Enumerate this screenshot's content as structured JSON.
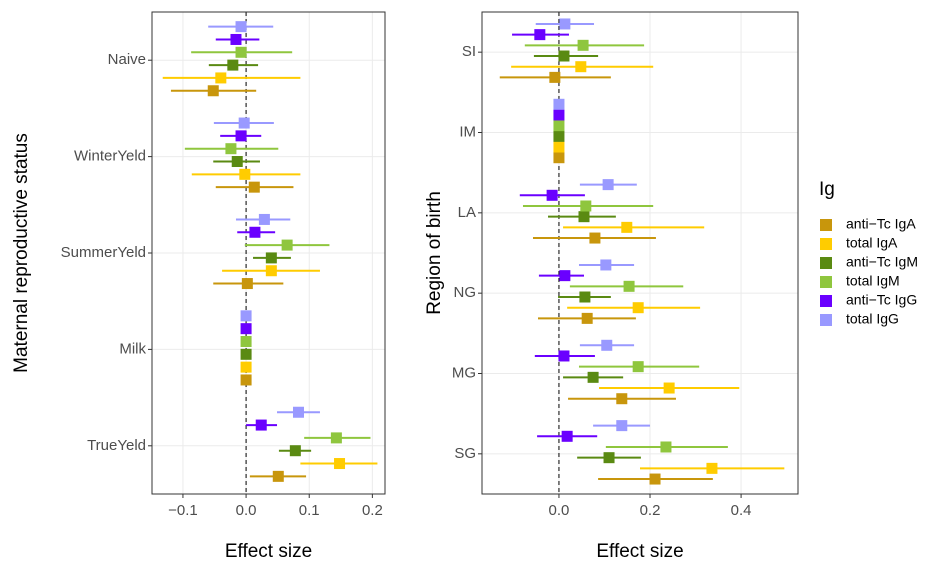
{
  "legend": {
    "title": "Ig",
    "entries": [
      {
        "name": "anti−Tc IgA",
        "color": "#c8960c"
      },
      {
        "name": "total IgA",
        "color": "#ffcc00"
      },
      {
        "name": "anti−Tc IgM",
        "color": "#5a8a12"
      },
      {
        "name": "total IgM",
        "color": "#8fc63e"
      },
      {
        "name": "anti−Tc IgG",
        "color": "#6a00ff"
      },
      {
        "name": "total IgG",
        "color": "#9999ff"
      }
    ]
  },
  "chart_data": [
    {
      "type": "forest",
      "x_label": "Effect size",
      "y_label": "Maternal reproductive status",
      "categories": [
        "Naive",
        "WinterYeld",
        "SummerYeld",
        "Milk",
        "TrueYeld"
      ],
      "xlim": [
        -0.149,
        0.22
      ],
      "xticks": [
        {
          "value": -0.1,
          "label": "−0.1"
        },
        {
          "value": 0,
          "label": "0.0"
        },
        0.1,
        0.2
      ],
      "reference_line": 0,
      "grid": true,
      "series": [
        {
          "values": [
            -0.052,
            0.013,
            0.002,
            0,
            0.051
          ],
          "lower": [
            -0.119,
            -0.048,
            -0.052,
            -0.005,
            0.006
          ],
          "upper": [
            0.016,
            0.075,
            0.059,
            0.005,
            0.095
          ]
        },
        {
          "values": [
            -0.04,
            -0.002,
            0.04,
            0,
            0.148
          ],
          "lower": [
            -0.132,
            -0.086,
            -0.038,
            -0.005,
            0.086
          ],
          "upper": [
            0.086,
            0.086,
            0.117,
            0.005,
            0.208
          ]
        },
        {
          "values": [
            -0.021,
            -0.014,
            0.04,
            0,
            0.078
          ],
          "lower": [
            -0.059,
            -0.052,
            0.011,
            -0.005,
            0.052
          ],
          "upper": [
            0.019,
            0.022,
            0.071,
            0.005,
            0.103
          ]
        },
        {
          "values": [
            -0.008,
            -0.024,
            0.065,
            0,
            0.143
          ],
          "lower": [
            -0.087,
            -0.097,
            -0.002,
            -0.005,
            0.092
          ],
          "upper": [
            0.073,
            0.051,
            0.132,
            0.005,
            0.197
          ]
        },
        {
          "values": [
            -0.016,
            -0.008,
            0.014,
            0,
            0.024
          ],
          "lower": [
            -0.048,
            -0.041,
            -0.014,
            -0.005,
            0
          ],
          "upper": [
            0.021,
            0.024,
            0.046,
            0.005,
            0.049
          ]
        },
        {
          "values": [
            -0.008,
            -0.003,
            0.029,
            0,
            0.083
          ],
          "lower": [
            -0.06,
            -0.051,
            -0.016,
            -0.005,
            0.049
          ],
          "upper": [
            0.043,
            0.044,
            0.07,
            0.005,
            0.117
          ]
        }
      ]
    },
    {
      "type": "forest",
      "x_label": "Effect size",
      "y_label": "Region of birth",
      "categories": [
        "SI",
        "IM",
        "LA",
        "NG",
        "MG",
        "SG"
      ],
      "xlim": [
        -0.169,
        0.525
      ],
      "xticks": [
        {
          "value": 0,
          "label": "0.0"
        },
        0.2,
        0.4
      ],
      "reference_line": 0,
      "grid": true,
      "series": [
        {
          "values": [
            -0.009,
            0,
            0.079,
            0.062,
            0.138,
            0.211
          ],
          "lower": [
            -0.13,
            -0.01,
            -0.057,
            -0.046,
            0.02,
            0.086
          ],
          "upper": [
            0.114,
            0.01,
            0.213,
            0.169,
            0.257,
            0.338
          ]
        },
        {
          "values": [
            0.048,
            0,
            0.149,
            0.174,
            0.242,
            0.336
          ],
          "lower": [
            -0.105,
            -0.01,
            0.009,
            0.018,
            0.088,
            0.178
          ],
          "upper": [
            0.207,
            0.01,
            0.319,
            0.31,
            0.396,
            0.495
          ]
        },
        {
          "values": [
            0.011,
            0,
            0.055,
            0.057,
            0.075,
            0.11
          ],
          "lower": [
            -0.055,
            -0.01,
            -0.024,
            -0.002,
            0.009,
            0.04
          ],
          "upper": [
            0.086,
            0.01,
            0.125,
            0.114,
            0.141,
            0.18
          ]
        },
        {
          "values": [
            0.053,
            0,
            0.059,
            0.154,
            0.174,
            0.235
          ],
          "lower": [
            -0.075,
            -0.01,
            -0.079,
            0.024,
            0.044,
            0.103
          ],
          "upper": [
            0.187,
            0.01,
            0.207,
            0.273,
            0.308,
            0.371
          ]
        },
        {
          "values": [
            -0.042,
            0,
            -0.015,
            0.013,
            0.011,
            0.018
          ],
          "lower": [
            -0.103,
            -0.01,
            -0.086,
            -0.044,
            -0.053,
            -0.048
          ],
          "upper": [
            0.022,
            0.01,
            0.057,
            0.055,
            0.079,
            0.084
          ]
        },
        {
          "values": [
            0.013,
            0,
            0.108,
            0.103,
            0.105,
            0.138
          ],
          "lower": [
            -0.051,
            -0.01,
            0.046,
            0.044,
            0.046,
            0.075
          ],
          "upper": [
            0.077,
            0.01,
            0.171,
            0.165,
            0.165,
            0.2
          ]
        }
      ]
    }
  ]
}
